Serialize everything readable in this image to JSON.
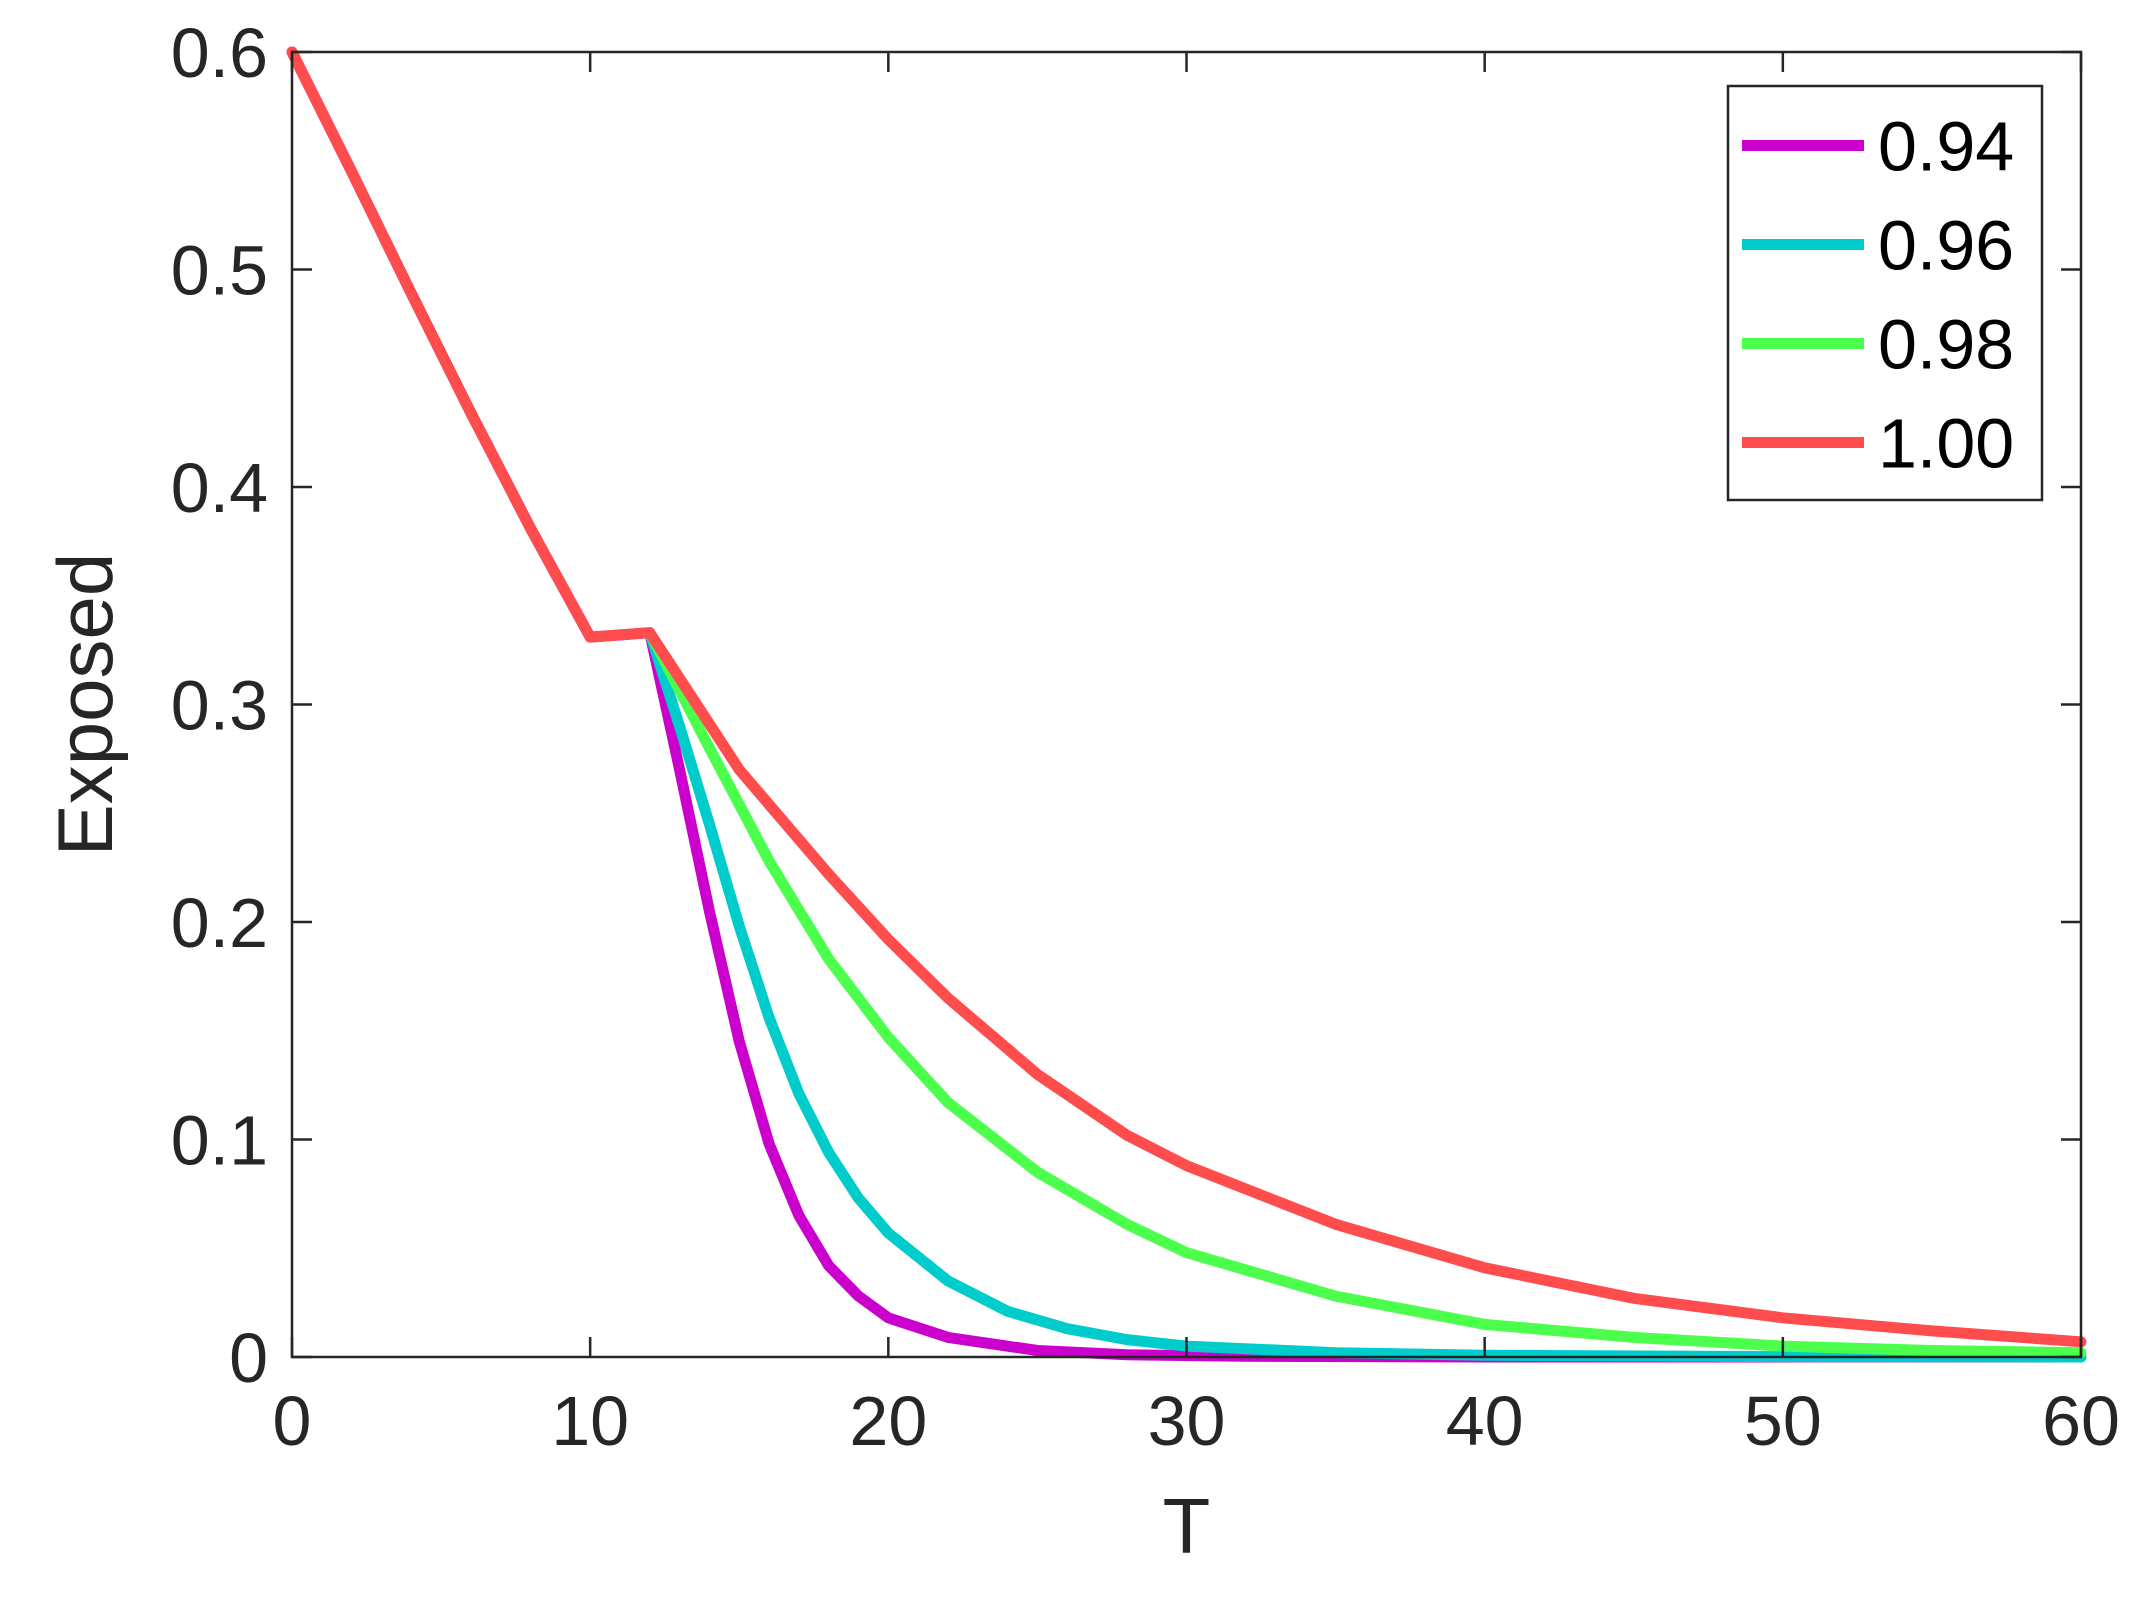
{
  "chart_data": {
    "type": "line",
    "title": "",
    "xlabel": "T",
    "ylabel": "Exposed",
    "xlim": [
      0,
      60
    ],
    "ylim": [
      0,
      0.6
    ],
    "xticks": [
      0,
      10,
      20,
      30,
      40,
      50,
      60
    ],
    "yticks": [
      0,
      0.1,
      0.2,
      0.3,
      0.4,
      0.5,
      0.6
    ],
    "xtick_labels": [
      "0",
      "10",
      "20",
      "30",
      "40",
      "50",
      "60"
    ],
    "ytick_labels": [
      "0",
      "0.1",
      "0.2",
      "0.3",
      "0.4",
      "0.5",
      "0.6"
    ],
    "grid": false,
    "legend_position": "top-right",
    "series": [
      {
        "name": "0.94",
        "color": "#CC00CC",
        "points": [
          [
            0,
            0.6
          ],
          [
            2,
            0.545
          ],
          [
            4,
            0.489
          ],
          [
            6,
            0.434
          ],
          [
            8,
            0.381
          ],
          [
            10,
            0.331
          ],
          [
            12,
            0.333
          ],
          [
            13,
            0.27
          ],
          [
            14,
            0.205
          ],
          [
            15,
            0.145
          ],
          [
            16,
            0.098
          ],
          [
            17,
            0.065
          ],
          [
            18,
            0.042
          ],
          [
            19,
            0.028
          ],
          [
            20,
            0.018
          ],
          [
            22,
            0.009
          ],
          [
            25,
            0.003
          ],
          [
            28,
            0.001
          ],
          [
            32,
            0.0003
          ],
          [
            40,
            0
          ],
          [
            50,
            0
          ],
          [
            60,
            0
          ]
        ]
      },
      {
        "name": "0.96",
        "color": "#00CCCC",
        "points": [
          [
            12,
            0.333
          ],
          [
            13,
            0.29
          ],
          [
            14,
            0.245
          ],
          [
            15,
            0.198
          ],
          [
            16,
            0.156
          ],
          [
            17,
            0.121
          ],
          [
            18,
            0.094
          ],
          [
            19,
            0.073
          ],
          [
            20,
            0.057
          ],
          [
            22,
            0.035
          ],
          [
            24,
            0.021
          ],
          [
            26,
            0.013
          ],
          [
            28,
            0.008
          ],
          [
            30,
            0.005
          ],
          [
            35,
            0.002
          ],
          [
            40,
            0.0008
          ],
          [
            50,
            0.0002
          ],
          [
            60,
            0
          ]
        ]
      },
      {
        "name": "0.98",
        "color": "#4DFF4D",
        "points": [
          [
            12,
            0.333
          ],
          [
            14,
            0.28
          ],
          [
            16,
            0.228
          ],
          [
            18,
            0.183
          ],
          [
            20,
            0.147
          ],
          [
            22,
            0.117
          ],
          [
            25,
            0.085
          ],
          [
            28,
            0.061
          ],
          [
            30,
            0.048
          ],
          [
            35,
            0.028
          ],
          [
            40,
            0.015
          ],
          [
            45,
            0.009
          ],
          [
            50,
            0.005
          ],
          [
            55,
            0.003
          ],
          [
            60,
            0.002
          ]
        ]
      },
      {
        "name": "1.00",
        "color": "#FF4D4D",
        "points": [
          [
            0,
            0.6
          ],
          [
            2,
            0.545
          ],
          [
            4,
            0.489
          ],
          [
            6,
            0.434
          ],
          [
            8,
            0.381
          ],
          [
            10,
            0.331
          ],
          [
            12,
            0.333
          ],
          [
            15,
            0.27
          ],
          [
            18,
            0.222
          ],
          [
            20,
            0.192
          ],
          [
            22,
            0.165
          ],
          [
            25,
            0.13
          ],
          [
            28,
            0.102
          ],
          [
            30,
            0.088
          ],
          [
            35,
            0.061
          ],
          [
            40,
            0.041
          ],
          [
            45,
            0.027
          ],
          [
            50,
            0.018
          ],
          [
            55,
            0.012
          ],
          [
            60,
            0.007
          ]
        ]
      }
    ]
  }
}
